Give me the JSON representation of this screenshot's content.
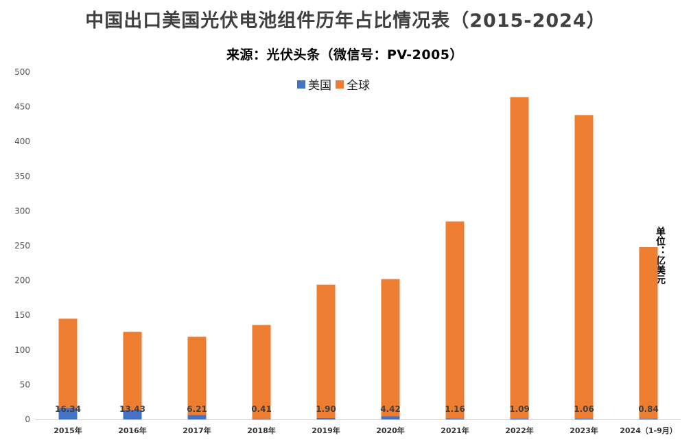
{
  "chart_data": {
    "type": "bar",
    "title": "中国出口美国光伏电池组件历年占比情况表（2015-2024）",
    "subtitle": "来源：光伏头条（微信号：PV-2005）",
    "unit_label": "单位：亿美元",
    "categories": [
      "2015年",
      "2016年",
      "2017年",
      "2018年",
      "2019年",
      "2020年",
      "2021年",
      "2022年",
      "2023年",
      "2024（1-9月）"
    ],
    "series": [
      {
        "name": "美国",
        "color": "#4472C4",
        "values": [
          16.34,
          13.43,
          6.21,
          0.41,
          1.9,
          4.42,
          1.16,
          1.09,
          1.06,
          0.84
        ]
      },
      {
        "name": "全球",
        "color": "#ED7D31",
        "values": [
          145,
          126,
          119,
          136,
          194,
          202,
          285,
          464,
          438,
          248
        ]
      }
    ],
    "data_labels": [
      "16.34",
      "13.43",
      "6.21",
      "0.41",
      "1.90",
      "4.42",
      "1.16",
      "1.09",
      "1.06",
      "0.84"
    ],
    "ylim": [
      0,
      500
    ],
    "yticks": [
      "0",
      "50",
      "100",
      "150",
      "200",
      "250",
      "300",
      "350",
      "400",
      "450",
      "500"
    ],
    "legend_position": "top",
    "grid": false
  }
}
